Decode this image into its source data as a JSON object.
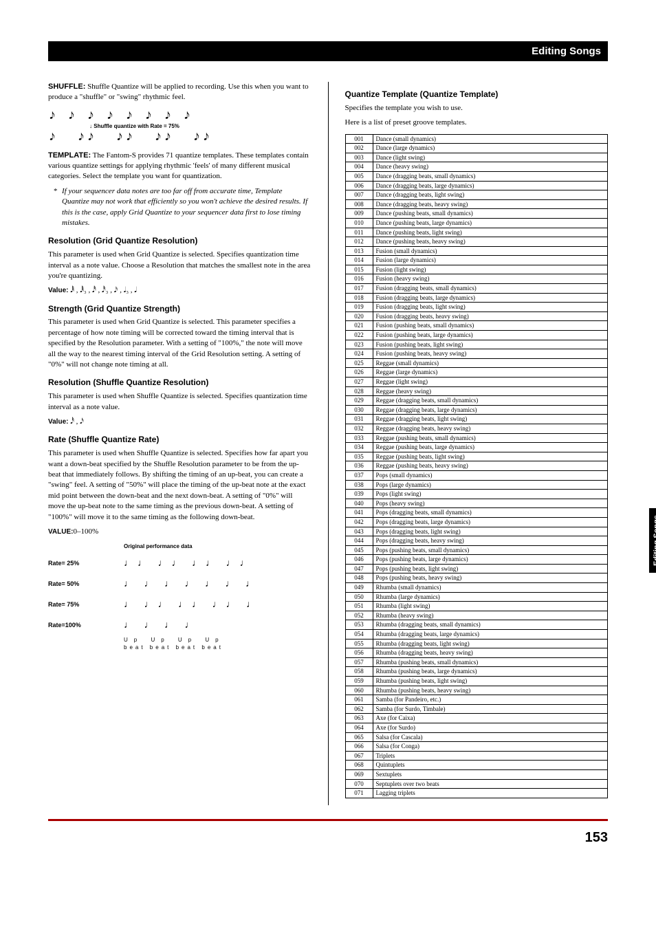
{
  "header": {
    "title": "Editing Songs"
  },
  "side_tab": "Editing Songs",
  "page_number": "153",
  "left": {
    "shuffle_para": {
      "run_in": "SHUFFLE:",
      "text": " Shuffle Quantize will be applied to recording. Use this when you want to produce a \"shuffle\" or \"swing\" rhythmic feel."
    },
    "shuffle_fig_caption": "Shuffle quantize with Rate = 75%",
    "template_para": {
      "run_in": "TEMPLATE:",
      "text": " The Fantom-S provides 71 quantize templates. These templates contain various quantize settings for applying rhythmic 'feels' of many different musical categories. Select the template you want for quantization."
    },
    "template_note": "If your sequencer data notes are too far off from accurate time, Template Quantize may not work that efficiently so you won't achieve the desired results. If this is the case, apply Grid Quantize to your sequencer data first to lose timing mistakes.",
    "res_grid": {
      "heading": "Resolution (Grid Quantize Resolution)",
      "body": "This parameter is used when Grid Quantize is selected. Specifies quantization time interval as a note value. Choose a Resolution that matches the smallest note in the area you're quantizing.",
      "value_label": "Value:",
      "value": " 𝅘𝅥𝅱 , 𝅘𝅥𝅱₃ , 𝅘𝅥𝅰 , 𝅘𝅥𝅰₃ , 𝅘𝅥𝅯 , 𝅘𝅥₃ , 𝅘𝅥"
    },
    "strength": {
      "heading": "Strength (Grid Quantize Strength)",
      "body": "This parameter is used when Grid Quantize is selected. This parameter specifies a percentage of how note timing will be corrected toward the timing interval that is specified by the Resolution parameter. With a setting of \"100%,\" the note will move all the way to the nearest timing interval of the Grid Resolution setting. A setting of \"0%\" will not change note timing at all."
    },
    "res_shuffle": {
      "heading": "Resolution (Shuffle Quantize Resolution)",
      "body": "This parameter is used when Shuffle Quantize is selected. Specifies quantization time interval as a note value.",
      "value_label": "Value:",
      "value": " 𝅘𝅥𝅰 , 𝅘𝅥𝅯"
    },
    "rate": {
      "heading": "Rate (Shuffle Quantize Rate)",
      "body": "This parameter is used when Shuffle Quantize is selected. Specifies how far apart you want a down-beat specified by the Shuffle Resolution parameter to be from the up-beat that immediately follows. By shifting the timing of an up-beat, you can create a \"swing\" feel. A setting of \"50%\" will place the timing of the up-beat note at the exact mid point between the down-beat and the next down-beat. A setting of \"0%\" will move the up-beat note to the same timing as the previous down-beat. A setting of \"100%\" will move it to the same timing as the following down-beat.",
      "value_label": "VALUE:",
      "value": "0–100%"
    },
    "rate_fig": {
      "header": "Original performance data",
      "rows": [
        {
          "label": "Rate= 25%",
          "pattern": "♩♩ ♩♩ ♩♩ ♩♩"
        },
        {
          "label": "Rate= 50%",
          "pattern": "♩ ♩ ♩ ♩ ♩ ♩ ♩"
        },
        {
          "label": "Rate= 75%",
          "pattern": "♩ ♩♩ ♩♩ ♩♩ ♩"
        },
        {
          "label": "Rate=100%",
          "pattern": "♩  ♩  ♩  ♩"
        }
      ],
      "beat_labels": "Up  Up  Up  Up",
      "beat_sub": "beat beat beat beat"
    }
  },
  "right": {
    "heading": "Quantize Template (Quantize Template)",
    "intro1": "Specifies the template you wish to use.",
    "intro2": "Here is a list of preset groove templates.",
    "presets": [
      [
        "001",
        "Dance (small dynamics)"
      ],
      [
        "002",
        "Dance (large dynamics)"
      ],
      [
        "003",
        "Dance (light swing)"
      ],
      [
        "004",
        "Dance (heavy swing)"
      ],
      [
        "005",
        "Dance (dragging beats, small dynamics)"
      ],
      [
        "006",
        "Dance (dragging beats, large dynamics)"
      ],
      [
        "007",
        "Dance (dragging beats, light swing)"
      ],
      [
        "008",
        "Dance (dragging beats, heavy swing)"
      ],
      [
        "009",
        "Dance (pushing beats, small dynamics)"
      ],
      [
        "010",
        "Dance (pushing beats, large dynamics)"
      ],
      [
        "011",
        "Dance (pushing beats, light swing)"
      ],
      [
        "012",
        "Dance (pushing beats, heavy swing)"
      ],
      [
        "013",
        "Fusion (small dynamics)"
      ],
      [
        "014",
        "Fusion (large dynamics)"
      ],
      [
        "015",
        "Fusion (light swing)"
      ],
      [
        "016",
        "Fusion (heavy swing)"
      ],
      [
        "017",
        "Fusion (dragging beats, small dynamics)"
      ],
      [
        "018",
        "Fusion (dragging beats, large dynamics)"
      ],
      [
        "019",
        "Fusion (dragging beats, light swing)"
      ],
      [
        "020",
        "Fusion (dragging beats, heavy swing)"
      ],
      [
        "021",
        "Fusion (pushing beats, small dynamics)"
      ],
      [
        "022",
        "Fusion (pushing beats, large dynamics)"
      ],
      [
        "023",
        "Fusion (pushing beats, light swing)"
      ],
      [
        "024",
        "Fusion (pushing beats, heavy swing)"
      ],
      [
        "025",
        "Reggae (small dynamics)"
      ],
      [
        "026",
        "Reggae (large dynamics)"
      ],
      [
        "027",
        "Reggae (light swing)"
      ],
      [
        "028",
        "Reggae (heavy swing)"
      ],
      [
        "029",
        "Reggae (dragging beats, small dynamics)"
      ],
      [
        "030",
        "Reggae (dragging beats, large dynamics)"
      ],
      [
        "031",
        "Reggae (dragging beats, light swing)"
      ],
      [
        "032",
        "Reggae (dragging beats, heavy swing)"
      ],
      [
        "033",
        "Reggae (pushing beats, small dynamics)"
      ],
      [
        "034",
        "Reggae (pushing beats, large dynamics)"
      ],
      [
        "035",
        "Reggae (pushing beats, light swing)"
      ],
      [
        "036",
        "Reggae (pushing beats, heavy swing)"
      ],
      [
        "037",
        "Pops (small dynamics)"
      ],
      [
        "038",
        "Pops (large dynamics)"
      ],
      [
        "039",
        "Pops (light swing)"
      ],
      [
        "040",
        "Pops (heavy swing)"
      ],
      [
        "041",
        "Pops (dragging beats, small dynamics)"
      ],
      [
        "042",
        "Pops (dragging beats, large dynamics)"
      ],
      [
        "043",
        "Pops (dragging beats, light swing)"
      ],
      [
        "044",
        "Pops (dragging beats, heavy swing)"
      ],
      [
        "045",
        "Pops (pushing beats, small dynamics)"
      ],
      [
        "046",
        "Pops (pushing beats, large dynamics)"
      ],
      [
        "047",
        "Pops (pushing beats, light swing)"
      ],
      [
        "048",
        "Pops (pushing beats, heavy swing)"
      ],
      [
        "049",
        "Rhumba (small dynamics)"
      ],
      [
        "050",
        "Rhumba (large dynamics)"
      ],
      [
        "051",
        "Rhumba (light swing)"
      ],
      [
        "052",
        "Rhumba (heavy swing)"
      ],
      [
        "053",
        "Rhumba (dragging beats, small dynamics)"
      ],
      [
        "054",
        "Rhumba (dragging beats, large dynamics)"
      ],
      [
        "055",
        "Rhumba (dragging beats, light swing)"
      ],
      [
        "056",
        "Rhumba (dragging beats, heavy swing)"
      ],
      [
        "057",
        "Rhumba (pushing beats, small dynamics)"
      ],
      [
        "058",
        "Rhumba (pushing beats, large dynamics)"
      ],
      [
        "059",
        "Rhumba (pushing beats, light swing)"
      ],
      [
        "060",
        "Rhumba (pushing beats, heavy swing)"
      ],
      [
        "061",
        "Samba (for Pandeiro, etc.)"
      ],
      [
        "062",
        "Samba (for Surdo, Timbale)"
      ],
      [
        "063",
        "Axe (for Caixa)"
      ],
      [
        "064",
        "Axe (for Surdo)"
      ],
      [
        "065",
        "Salsa (for Cascala)"
      ],
      [
        "066",
        "Salsa (for Conga)"
      ],
      [
        "067",
        "Triplets"
      ],
      [
        "068",
        "Quintuplets"
      ],
      [
        "069",
        "Sextuplets"
      ],
      [
        "070",
        "Septuplets over two beats"
      ],
      [
        "071",
        "Lagging triplets"
      ]
    ]
  }
}
